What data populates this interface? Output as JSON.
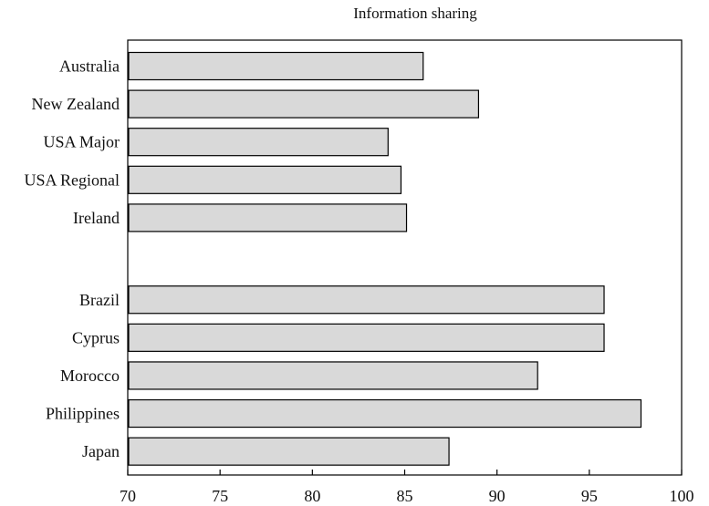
{
  "chart_data": {
    "type": "bar",
    "orientation": "horizontal",
    "title": "Information sharing",
    "xlabel": "",
    "ylabel": "",
    "xlim": [
      70,
      100
    ],
    "xticks": [
      70,
      75,
      80,
      85,
      90,
      95,
      100
    ],
    "grid": false,
    "legend": "none",
    "bar_color": "#d9d9d9",
    "bar_edge_color": "#000000",
    "groups": [
      {
        "categories": [
          "Australia",
          "New Zealand",
          "USA Major",
          "USA Regional",
          "Ireland"
        ],
        "values": [
          86.0,
          89.0,
          84.1,
          84.8,
          85.1
        ]
      },
      {
        "categories": [
          "Brazil",
          "Cyprus",
          "Morocco",
          "Philippines",
          "Japan"
        ],
        "values": [
          95.8,
          95.8,
          92.2,
          97.8,
          87.4
        ]
      }
    ]
  }
}
